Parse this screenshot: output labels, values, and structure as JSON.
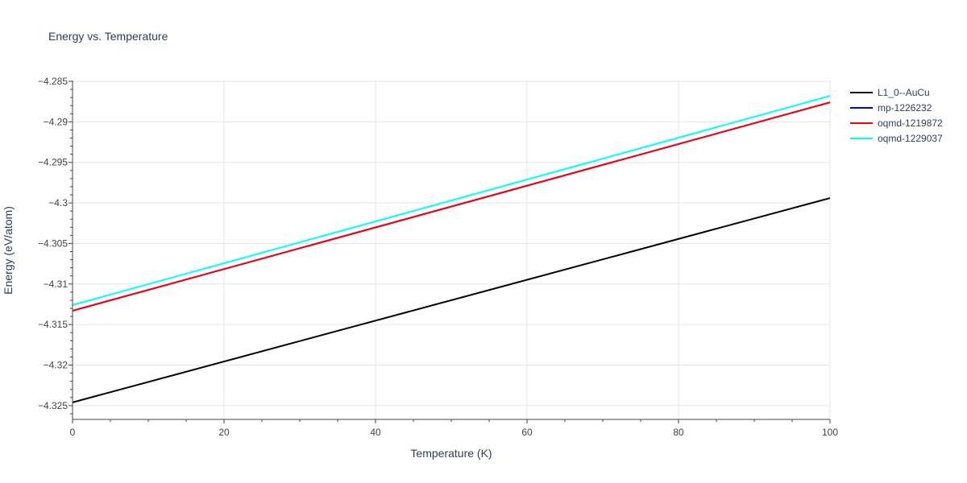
{
  "chart_data": {
    "type": "line",
    "title": "Energy vs. Temperature",
    "xlabel": "Temperature (K)",
    "ylabel": "Energy (eV/atom)",
    "xlim": [
      0,
      100
    ],
    "ylim": [
      -4.3267,
      -4.2849
    ],
    "x_ticks": [
      0,
      20,
      40,
      60,
      80,
      100
    ],
    "y_ticks": [
      -4.325,
      -4.32,
      -4.315,
      -4.31,
      -4.305,
      -4.3,
      -4.295,
      -4.29,
      -4.285
    ],
    "y_tick_labels": [
      "−4.325",
      "−4.32",
      "−4.315",
      "−4.31",
      "−4.305",
      "−4.3",
      "−4.295",
      "−4.29",
      "−4.285"
    ],
    "grid": true,
    "legend_position": "right",
    "series": [
      {
        "name": "L1_0--AuCu",
        "color": "#000000",
        "x": [
          0,
          100
        ],
        "y": [
          -4.3246,
          -4.2994
        ]
      },
      {
        "name": "mp-1226232",
        "color": "#0000ff",
        "x": [
          0,
          100
        ],
        "y": [
          -4.3133,
          -4.2876
        ]
      },
      {
        "name": "oqmd-1219872",
        "color": "#ff0000",
        "x": [
          0,
          100
        ],
        "y": [
          -4.3133,
          -4.2876
        ]
      },
      {
        "name": "oqmd-1229037",
        "color": "#00ffff",
        "x": [
          0,
          100
        ],
        "y": [
          -4.3126,
          -4.2868
        ]
      }
    ]
  }
}
